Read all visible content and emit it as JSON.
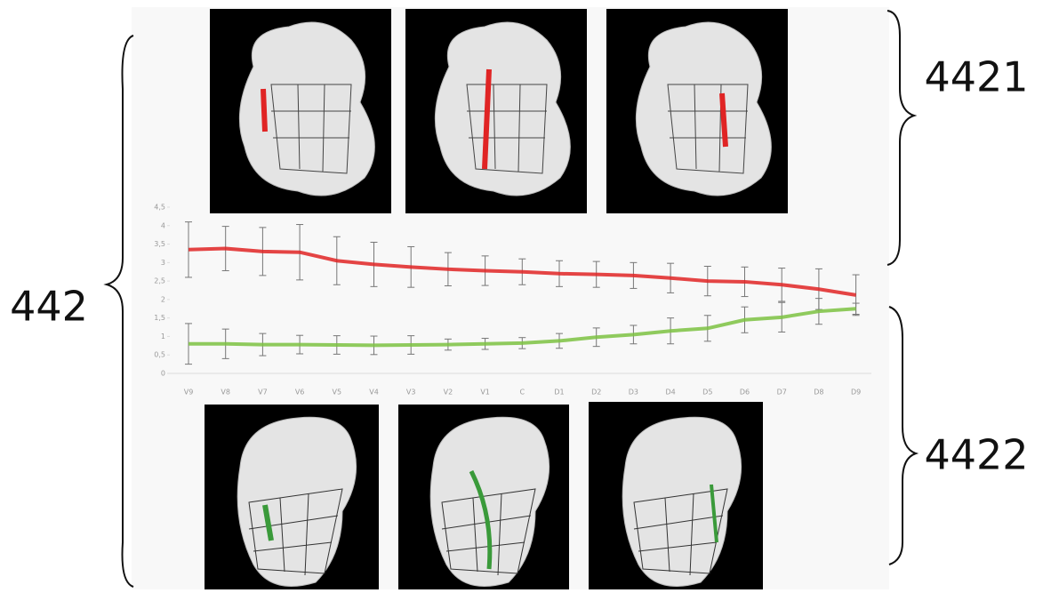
{
  "labels": [
    "442",
    "4421",
    "4422"
  ],
  "chart_data": {
    "type": "line",
    "categories": [
      "V9",
      "V8",
      "V7",
      "V6",
      "V5",
      "V4",
      "V3",
      "V2",
      "V1",
      "C",
      "D1",
      "D2",
      "D3",
      "D4",
      "D5",
      "D6",
      "D7",
      "D8",
      "D9"
    ],
    "ylim": [
      0,
      4.5
    ],
    "yticks": [
      0,
      {
        "value": 0.5,
        "label": "0,5"
      },
      1,
      {
        "value": 1.5,
        "label": "1,5"
      },
      2,
      {
        "value": 2.5,
        "label": "2,5"
      },
      3,
      {
        "value": 3.5,
        "label": "3,5"
      },
      4,
      {
        "value": 4.5,
        "label": "4,5"
      }
    ],
    "series": [
      {
        "color": "#e02424",
        "values": [
          3.35,
          3.38,
          3.3,
          3.28,
          3.05,
          2.95,
          2.88,
          2.82,
          2.78,
          2.75,
          2.7,
          2.68,
          2.65,
          2.58,
          2.5,
          2.48,
          2.4,
          2.28,
          2.12
        ],
        "errors": [
          0.75,
          0.6,
          0.65,
          0.75,
          0.65,
          0.6,
          0.55,
          0.45,
          0.4,
          0.35,
          0.35,
          0.35,
          0.35,
          0.4,
          0.4,
          0.4,
          0.45,
          0.55,
          0.55
        ]
      },
      {
        "color": "#7cc242",
        "values": [
          0.8,
          0.8,
          0.78,
          0.78,
          0.77,
          0.76,
          0.77,
          0.78,
          0.8,
          0.82,
          0.88,
          0.98,
          1.05,
          1.15,
          1.22,
          1.45,
          1.52,
          1.68,
          1.75
        ],
        "errors": [
          0.55,
          0.4,
          0.3,
          0.25,
          0.25,
          0.25,
          0.25,
          0.15,
          0.15,
          0.15,
          0.2,
          0.25,
          0.25,
          0.35,
          0.35,
          0.35,
          0.4,
          0.35,
          0.15
        ]
      }
    ]
  }
}
